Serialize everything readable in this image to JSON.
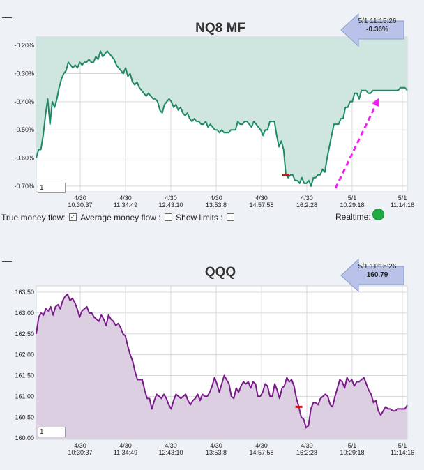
{
  "charts": [
    {
      "title": "NQ8 MF",
      "box": {
        "date": "5/1 11:15:26",
        "value": "-0.36%"
      },
      "input_value": "1",
      "controls": {
        "true_money_flow": "True money flow:",
        "average_money_flow": "Average money flow :",
        "show_limits": "Show limits :",
        "realtime": "Realtime:"
      }
    },
    {
      "title": "QQQ",
      "box": {
        "date": "5/1 11:15:26",
        "value": "160.79"
      },
      "input_value": "1"
    }
  ],
  "colors": {
    "nq_line": "#1e8a63",
    "nq_fill": "#cfe5df",
    "qqq_line": "#7a1a8a",
    "qqq_fill": "#dccfe2",
    "arrow": "#ee22ee",
    "marker": "#cc1111",
    "realtime_dot": "#22aa44"
  },
  "chart_data": [
    {
      "type": "area",
      "title": "NQ8 MF",
      "x_ticks": [
        {
          "date": "4/30",
          "time": "10:30:37"
        },
        {
          "date": "4/30",
          "time": "11:34:49"
        },
        {
          "date": "4/30",
          "time": "12:43:10"
        },
        {
          "date": "4/30",
          "time": "13:53:8"
        },
        {
          "date": "4/30",
          "time": "14:57:58"
        },
        {
          "date": "4/30",
          "time": "16:2:28"
        },
        {
          "date": "5/1",
          "time": "10:29:18"
        },
        {
          "date": "5/1",
          "time": "11:14:16"
        }
      ],
      "y_ticks": [
        "-0.20%",
        "-0.30%",
        "-0.40%",
        "-0.50%",
        "-0.60%",
        "-0.70%"
      ],
      "ylim": [
        -0.72,
        -0.17
      ],
      "values": [
        -0.6,
        -0.57,
        -0.57,
        -0.52,
        -0.45,
        -0.39,
        -0.48,
        -0.4,
        -0.42,
        -0.39,
        -0.35,
        -0.32,
        -0.3,
        -0.29,
        -0.26,
        -0.27,
        -0.28,
        -0.27,
        -0.28,
        -0.26,
        -0.27,
        -0.26,
        -0.26,
        -0.25,
        -0.26,
        -0.26,
        -0.24,
        -0.25,
        -0.22,
        -0.24,
        -0.23,
        -0.22,
        -0.23,
        -0.24,
        -0.25,
        -0.27,
        -0.28,
        -0.29,
        -0.3,
        -0.28,
        -0.31,
        -0.3,
        -0.33,
        -0.34,
        -0.33,
        -0.35,
        -0.36,
        -0.37,
        -0.38,
        -0.37,
        -0.38,
        -0.39,
        -0.39,
        -0.4,
        -0.43,
        -0.44,
        -0.41,
        -0.4,
        -0.39,
        -0.4,
        -0.42,
        -0.41,
        -0.43,
        -0.42,
        -0.44,
        -0.45,
        -0.44,
        -0.46,
        -0.47,
        -0.46,
        -0.47,
        -0.47,
        -0.48,
        -0.48,
        -0.47,
        -0.49,
        -0.48,
        -0.49,
        -0.5,
        -0.5,
        -0.51,
        -0.5,
        -0.51,
        -0.51,
        -0.51,
        -0.5,
        -0.5,
        -0.5,
        -0.47,
        -0.48,
        -0.48,
        -0.47,
        -0.47,
        -0.48,
        -0.49,
        -0.47,
        -0.48,
        -0.49,
        -0.5,
        -0.52,
        -0.5,
        -0.5,
        -0.47,
        -0.47,
        -0.47,
        -0.52,
        -0.56,
        -0.54,
        -0.57,
        -0.66,
        -0.67,
        -0.66,
        -0.66,
        -0.68,
        -0.68,
        -0.69,
        -0.67,
        -0.69,
        -0.69,
        -0.68,
        -0.7,
        -0.67,
        -0.67,
        -0.66,
        -0.66,
        -0.64,
        -0.65,
        -0.6,
        -0.56,
        -0.52,
        -0.48,
        -0.48,
        -0.48,
        -0.46,
        -0.46,
        -0.42,
        -0.42,
        -0.4,
        -0.4,
        -0.37,
        -0.37,
        -0.39,
        -0.36,
        -0.36,
        -0.36,
        -0.37,
        -0.37,
        -0.36,
        -0.36,
        -0.36,
        -0.36,
        -0.36,
        -0.36,
        -0.36,
        -0.36,
        -0.36,
        -0.36,
        -0.36,
        -0.36,
        -0.35,
        -0.35,
        -0.35,
        -0.36
      ],
      "marker_index": 109
    },
    {
      "type": "area",
      "title": "QQQ",
      "x_ticks": [
        {
          "date": "4/30",
          "time": "10:30:37"
        },
        {
          "date": "4/30",
          "time": "11:34:49"
        },
        {
          "date": "4/30",
          "time": "12:43:10"
        },
        {
          "date": "4/30",
          "time": "13:53:8"
        },
        {
          "date": "4/30",
          "time": "14:57:58"
        },
        {
          "date": "4/30",
          "time": "16:2:28"
        },
        {
          "date": "5/1",
          "time": "10:29:18"
        },
        {
          "date": "5/1",
          "time": "11:14:16"
        }
      ],
      "y_ticks": [
        "163.50",
        "163.00",
        "162.50",
        "162.00",
        "161.50",
        "161.00",
        "160.50",
        "160.00"
      ],
      "ylim": [
        159.97,
        163.65
      ],
      "values": [
        162.5,
        162.9,
        163.0,
        162.95,
        163.1,
        163.05,
        163.15,
        162.95,
        163.15,
        163.2,
        163.1,
        163.3,
        163.4,
        163.45,
        163.3,
        163.35,
        163.25,
        163.1,
        162.9,
        163.05,
        163.1,
        163.15,
        163.0,
        163.0,
        162.9,
        162.85,
        162.8,
        162.95,
        162.85,
        162.7,
        162.95,
        162.85,
        162.8,
        162.7,
        162.75,
        162.65,
        162.5,
        162.45,
        162.2,
        162.0,
        161.85,
        161.6,
        161.4,
        161.4,
        161.4,
        161.15,
        160.95,
        160.95,
        160.7,
        160.9,
        161.05,
        161.0,
        160.95,
        161.05,
        160.95,
        160.8,
        160.7,
        160.9,
        161.05,
        161.0,
        160.95,
        161.0,
        161.05,
        160.9,
        160.8,
        160.9,
        160.95,
        161.05,
        160.9,
        161.05,
        161.0,
        161.0,
        161.1,
        161.25,
        161.45,
        161.3,
        161.1,
        161.3,
        161.5,
        161.4,
        161.3,
        161.0,
        160.95,
        161.2,
        161.1,
        161.25,
        161.35,
        161.3,
        161.35,
        161.2,
        161.35,
        161.3,
        161.0,
        161.0,
        161.1,
        161.3,
        161.25,
        161.0,
        161.0,
        161.3,
        161.15,
        160.95,
        161.2,
        161.25,
        161.45,
        161.35,
        161.4,
        161.25,
        160.95,
        160.75,
        160.5,
        160.45,
        160.25,
        160.3,
        160.7,
        160.85,
        160.85,
        160.8,
        160.95,
        161.0,
        161.05,
        161.0,
        160.8,
        160.75,
        161.0,
        161.2,
        161.4,
        161.35,
        161.2,
        161.45,
        161.35,
        161.4,
        161.25,
        161.35,
        161.35,
        161.4,
        161.45,
        161.3,
        161.15,
        161.05,
        160.85,
        160.9,
        160.65,
        160.55,
        160.65,
        160.75,
        160.7,
        160.7,
        160.65,
        160.65,
        160.7,
        160.7,
        160.7,
        160.7,
        160.79
      ],
      "marker_index": 109
    }
  ]
}
